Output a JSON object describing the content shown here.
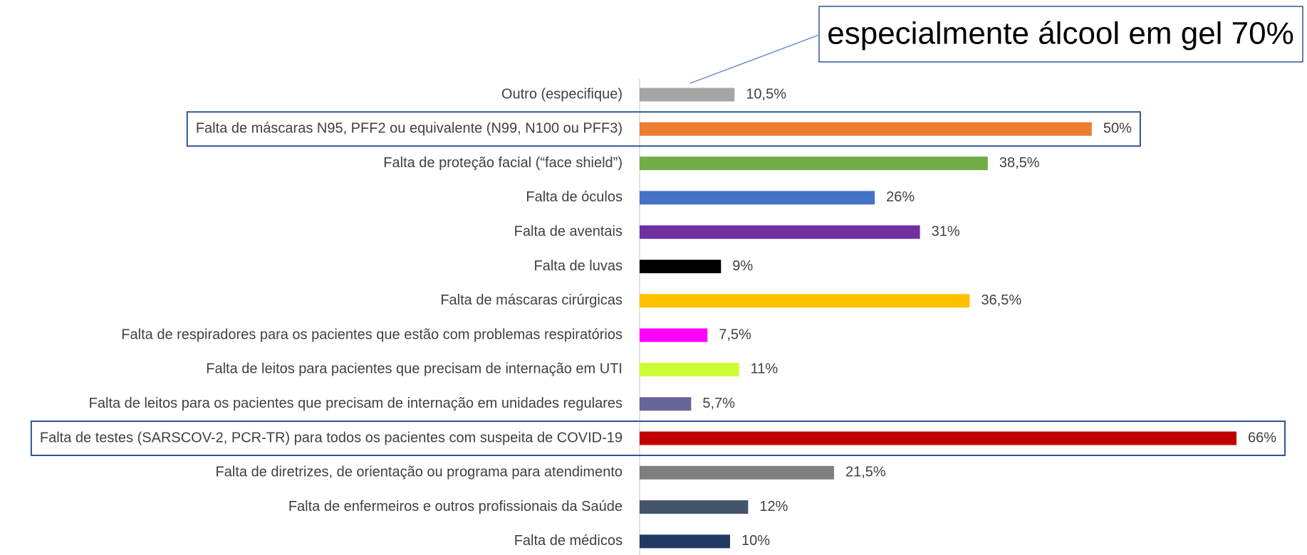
{
  "chart_data": {
    "type": "barh",
    "categories": [
      "Outro (especifique)",
      "Falta de máscaras N95, PFF2 ou equivalente (N99, N100 ou PFF3)",
      "Falta de proteção facial (“face shield”)",
      "Falta de óculos",
      "Falta de aventais",
      "Falta de luvas",
      "Falta de máscaras cirúrgicas",
      "Falta de respiradores para os pacientes que estão com problemas respiratórios",
      "Falta de leitos para pacientes que precisam de internação em UTI",
      "Falta de leitos para os pacientes que precisam de internação em unidades regulares",
      "Falta de testes (SARSCOV-2, PCR-TR) para todos os pacientes com suspeita de COVID-19",
      "Falta de diretrizes, de orientação ou programa para atendimento",
      "Falta de enfermeiros e outros profissionais da Saúde",
      "Falta de médicos"
    ],
    "values": [
      10.5,
      50,
      38.5,
      26,
      31,
      9,
      36.5,
      7.5,
      11,
      5.7,
      66,
      21.5,
      12,
      10
    ],
    "value_labels": [
      "10,5%",
      "50%",
      "38,5%",
      "26%",
      "31%",
      "9%",
      "36,5%",
      "7,5%",
      "11%",
      "5,7%",
      "66%",
      "21,5%",
      "12%",
      "10%"
    ],
    "colors": [
      "#a5a5a5",
      "#ed7d31",
      "#70ad47",
      "#4472c4",
      "#7030a0",
      "#000000",
      "#ffc000",
      "#ff00ff",
      "#ccff33",
      "#666699",
      "#c00000",
      "#7f7f7f",
      "#44546a",
      "#203864"
    ],
    "highlight": [
      1,
      10
    ],
    "annotation": {
      "text": "especialmente álcool em gel 70%",
      "target": 0
    }
  }
}
